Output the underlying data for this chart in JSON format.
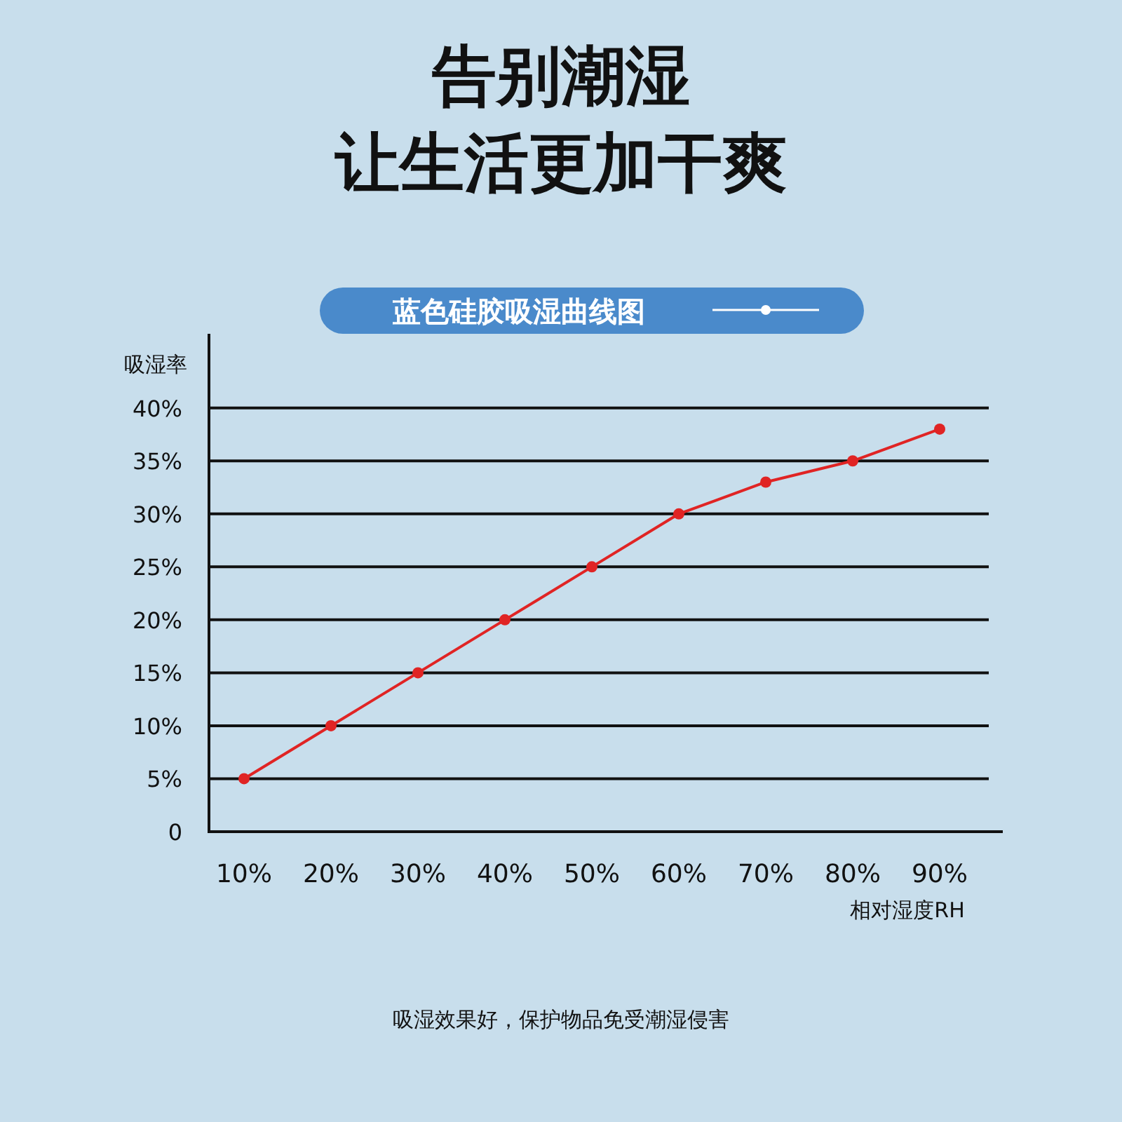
{
  "chart_data": {
    "type": "line",
    "title": "告别潮湿",
    "subtitle": "让生活更加干爽",
    "annotations": [
      "蓝色硅胶吸湿曲线图",
      "吸湿效果好，保护物品免受潮湿侵害"
    ],
    "xlabel": "相对湿度RH",
    "ylabel": "吸湿率",
    "categories": [
      "10%",
      "20%",
      "30%",
      "40%",
      "50%",
      "60%",
      "70%",
      "80%",
      "90%"
    ],
    "series": [
      {
        "color": "#e02424",
        "values": [
          5,
          10,
          15,
          20,
          25,
          30,
          33,
          35,
          38
        ]
      }
    ],
    "ylim": [
      0,
      47
    ],
    "yticks": [
      {
        "value": 0,
        "label": "0"
      },
      {
        "value": 5,
        "label": "5%"
      },
      {
        "value": 10,
        "label": "10%"
      },
      {
        "value": 15,
        "label": "15%"
      },
      {
        "value": 20,
        "label": "20%"
      },
      {
        "value": 25,
        "label": "25%"
      },
      {
        "value": 30,
        "label": "30%"
      },
      {
        "value": 35,
        "label": "35%"
      },
      {
        "value": 40,
        "label": "40%"
      }
    ],
    "grid": "y",
    "marker": "circle",
    "line_style": "solid"
  }
}
